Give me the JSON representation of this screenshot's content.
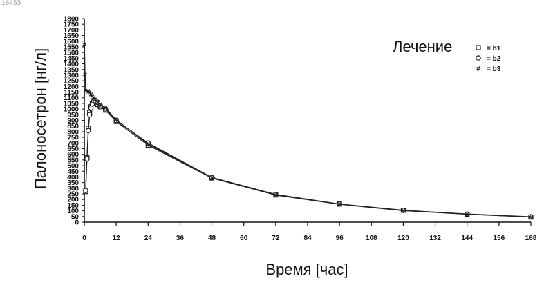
{
  "corner_id": "16455",
  "chart_data": {
    "type": "line",
    "xlabel": "Время [час]",
    "ylabel": "Палоносетрон [нг/л]",
    "xlim": [
      0,
      168
    ],
    "ylim": [
      0,
      1800
    ],
    "x_ticks": [
      0,
      12,
      24,
      36,
      48,
      60,
      72,
      84,
      96,
      108,
      120,
      132,
      144,
      156,
      168
    ],
    "y_ticks": [
      0,
      50,
      100,
      150,
      200,
      250,
      300,
      350,
      400,
      450,
      500,
      550,
      600,
      650,
      700,
      750,
      800,
      850,
      900,
      950,
      1000,
      1050,
      1100,
      1150,
      1200,
      1250,
      1300,
      1350,
      1400,
      1450,
      1500,
      1550,
      1600,
      1650,
      1700,
      1750,
      1800
    ],
    "y_tick_labels": [
      "0",
      "50",
      "100",
      "150",
      "200",
      "250",
      "300",
      "350",
      "400",
      "450",
      "500",
      "550",
      "600",
      "650",
      "700",
      "750",
      "800",
      "850",
      "900",
      "950",
      "1000",
      "1050",
      "1100",
      "1150",
      "1200",
      "1250",
      "1300",
      "1350",
      "1400",
      "1450",
      "1500",
      "1550",
      "1600",
      "1650",
      "1700",
      "1750",
      "1800"
    ],
    "legend": {
      "title": "Лечение",
      "position": "top-right",
      "items": [
        {
          "marker": "square",
          "marker_label": "□",
          "label": "= b1"
        },
        {
          "marker": "circle",
          "marker_label": "○",
          "label": "= b2"
        },
        {
          "marker": "hash",
          "marker_label": "#",
          "label": "= b3"
        }
      ]
    },
    "series": [
      {
        "name": "b1",
        "marker": "square",
        "x": [
          0.5,
          1,
          1.5,
          2,
          2.5,
          3,
          3.5,
          4,
          5,
          6,
          8,
          12,
          24,
          48,
          72,
          96,
          120,
          144,
          168
        ],
        "y": [
          270,
          570,
          830,
          970,
          1020,
          1050,
          1060,
          1055,
          1040,
          1020,
          990,
          890,
          680,
          390,
          240,
          160,
          105,
          70,
          45
        ]
      },
      {
        "name": "b2",
        "marker": "circle",
        "x": [
          0.5,
          1,
          1.5,
          2,
          2.5,
          3,
          3.5,
          4,
          5,
          6,
          8,
          12,
          24,
          48,
          72,
          96,
          120,
          144,
          168
        ],
        "y": [
          280,
          560,
          810,
          950,
          1010,
          1045,
          1070,
          1075,
          1060,
          1030,
          1000,
          900,
          700,
          395,
          245,
          160,
          105,
          72,
          48
        ]
      },
      {
        "name": "b3",
        "marker": "hash",
        "x": [
          0.05,
          0.25,
          0.5,
          1,
          1.5,
          2,
          2.5,
          3,
          3.5,
          4,
          5,
          6,
          8,
          12,
          24,
          48,
          72,
          96,
          120,
          144,
          168
        ],
        "y": [
          1570,
          1310,
          1160,
          1160,
          1160,
          1150,
          1130,
          1115,
          1100,
          1085,
          1060,
          1040,
          1010,
          905,
          690,
          395,
          240,
          158,
          102,
          70,
          46
        ]
      }
    ]
  }
}
